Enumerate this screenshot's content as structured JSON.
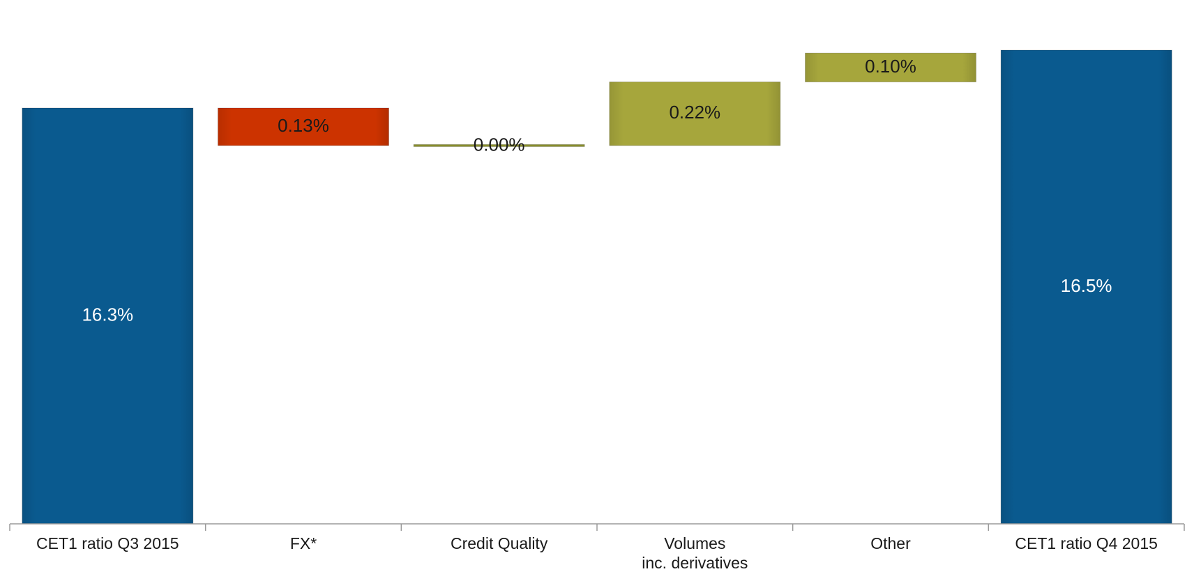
{
  "chart_data": {
    "type": "bar",
    "subtype": "waterfall",
    "title": "",
    "xlabel": "",
    "ylabel": "",
    "ylim": [
      0,
      16.8
    ],
    "grid": false,
    "legend": "none",
    "categories": [
      [
        "CET1 ratio Q3 2015"
      ],
      [
        "FX*"
      ],
      [
        "Credit Quality"
      ],
      [
        "Volumes",
        "inc. derivatives"
      ],
      [
        "Other"
      ],
      [
        "CET1 ratio Q4 2015"
      ]
    ],
    "bars": [
      {
        "kind": "total",
        "value": 16.3,
        "label": "16.3%",
        "color": "#0a5a8f",
        "text_color": "#ffffff"
      },
      {
        "kind": "decrease",
        "value": -0.13,
        "label": "0.13%",
        "color": "#cc3300",
        "text_color": "#1a1a1a"
      },
      {
        "kind": "change",
        "value": 0.0,
        "label": "0.00%",
        "color": "#8a8f2e",
        "text_color": "#1a1a1a"
      },
      {
        "kind": "increase",
        "value": 0.22,
        "label": "0.22%",
        "color": "#a6a63c",
        "text_color": "#1a1a1a"
      },
      {
        "kind": "increase",
        "value": 0.1,
        "label": "0.10%",
        "color": "#a6a63c",
        "text_color": "#1a1a1a"
      },
      {
        "kind": "total",
        "value": 16.5,
        "label": "16.5%",
        "color": "#0a5a8f",
        "text_color": "#ffffff"
      }
    ]
  }
}
